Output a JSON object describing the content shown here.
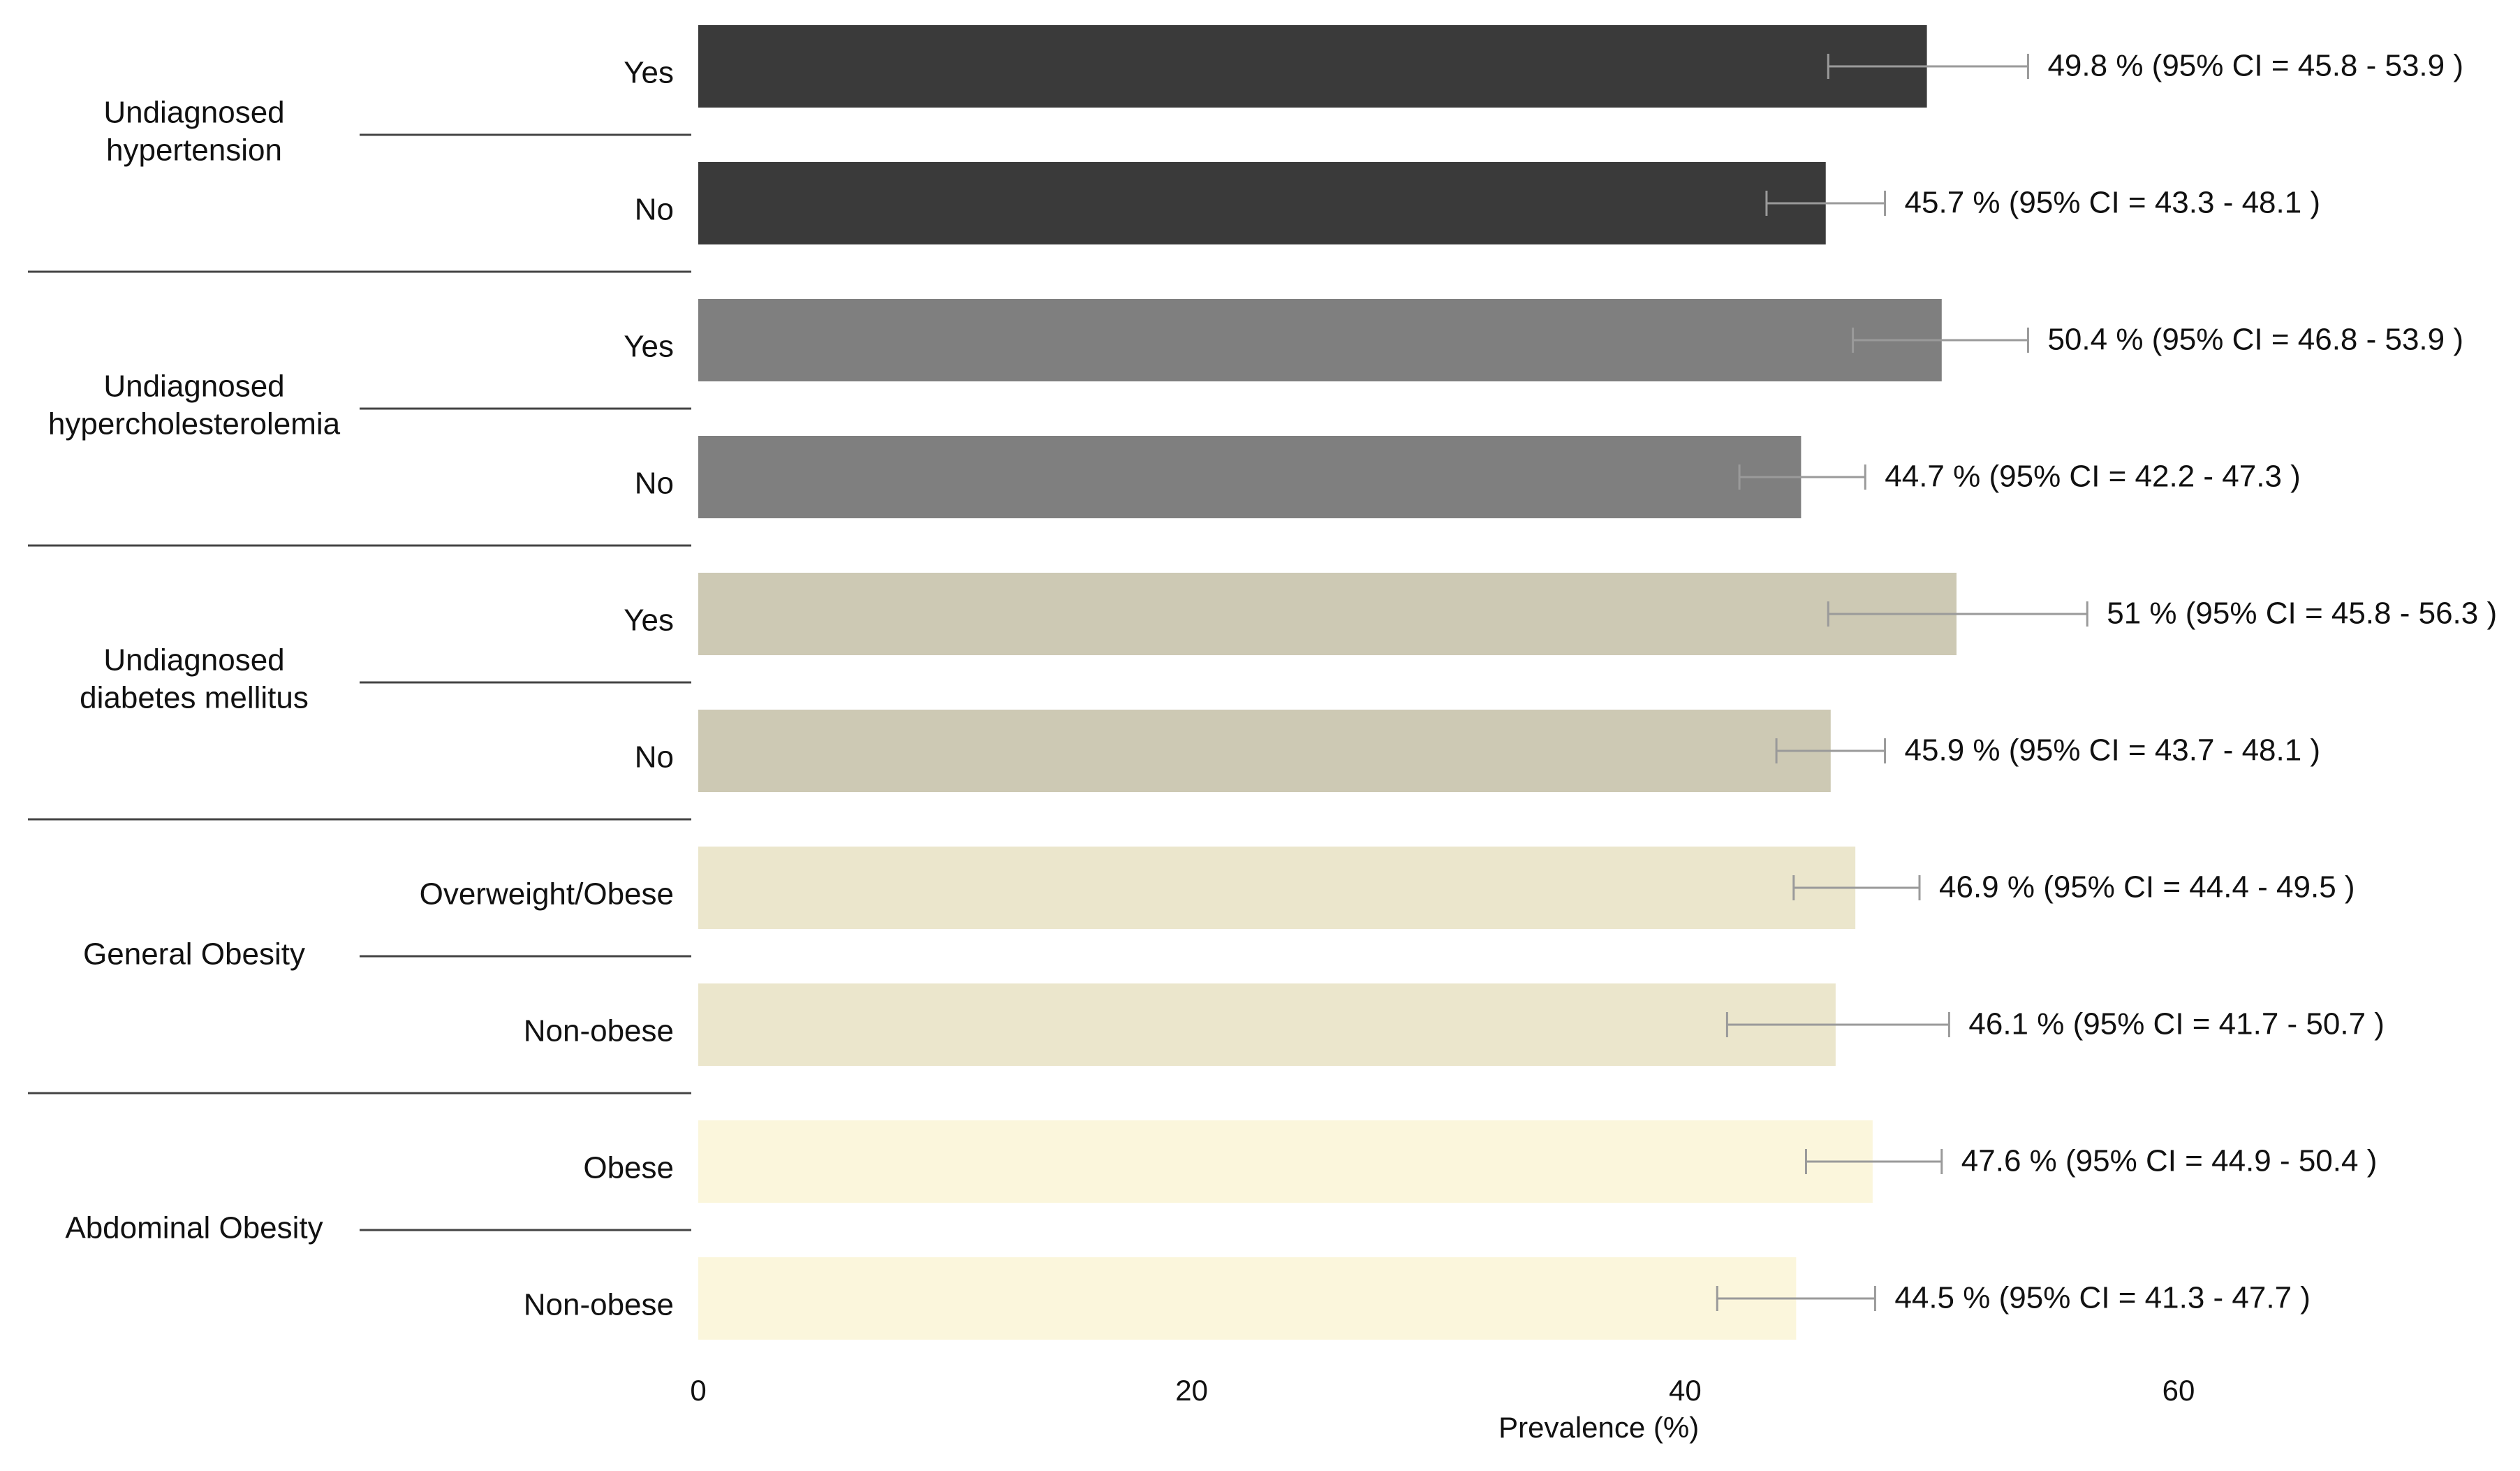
{
  "chart_data": {
    "type": "bar",
    "orientation": "horizontal",
    "title": "",
    "xlabel": "Prevalence (%)",
    "ylabel": "",
    "xlim": [
      0,
      73
    ],
    "x_ticks": [
      "0",
      "20",
      "40",
      "60"
    ],
    "x_tick_values": [
      0,
      20,
      40,
      60
    ],
    "grid": false,
    "groups": [
      {
        "label_lines": [
          "Undiagnosed",
          "hypertension"
        ],
        "color": "#3a3a3a",
        "rows": [
          {
            "category": "Yes",
            "value": 49.8,
            "ci_low": 45.8,
            "ci_high": 53.9,
            "label": "49.8 % (95% CI = 45.8 - 53.9 )"
          },
          {
            "category": "No",
            "value": 45.7,
            "ci_low": 43.3,
            "ci_high": 48.1,
            "label": "45.7 % (95% CI = 43.3 - 48.1 )"
          }
        ]
      },
      {
        "label_lines": [
          "Undiagnosed",
          "hypercholesterolemia"
        ],
        "color": "#7f7f7f",
        "rows": [
          {
            "category": "Yes",
            "value": 50.4,
            "ci_low": 46.8,
            "ci_high": 53.9,
            "label": "50.4 % (95% CI = 46.8 - 53.9 )"
          },
          {
            "category": "No",
            "value": 44.7,
            "ci_low": 42.2,
            "ci_high": 47.3,
            "label": "44.7 % (95% CI = 42.2 - 47.3 )"
          }
        ]
      },
      {
        "label_lines": [
          "Undiagnosed",
          "diabetes mellitus"
        ],
        "color": "#cdc9b4",
        "rows": [
          {
            "category": "Yes",
            "value": 51,
            "ci_low": 45.8,
            "ci_high": 56.3,
            "label": "51 % (95% CI = 45.8 - 56.3 )"
          },
          {
            "category": "No",
            "value": 45.9,
            "ci_low": 43.7,
            "ci_high": 48.1,
            "label": "45.9 % (95% CI = 43.7 - 48.1 )"
          }
        ]
      },
      {
        "label_lines": [
          "General Obesity"
        ],
        "color": "#ebe6cc",
        "rows": [
          {
            "category": "Overweight/Obese",
            "value": 46.9,
            "ci_low": 44.4,
            "ci_high": 49.5,
            "label": "46.9 % (95% CI = 44.4 - 49.5 )"
          },
          {
            "category": "Non-obese",
            "value": 46.1,
            "ci_low": 41.7,
            "ci_high": 50.7,
            "label": "46.1 % (95% CI = 41.7 - 50.7 )"
          }
        ]
      },
      {
        "label_lines": [
          "Abdominal Obesity"
        ],
        "color": "#fbf6dc",
        "rows": [
          {
            "category": "Obese",
            "value": 47.6,
            "ci_low": 44.9,
            "ci_high": 50.4,
            "label": "47.6 % (95% CI = 44.9 - 50.4 )"
          },
          {
            "category": "Non-obese",
            "value": 44.5,
            "ci_low": 41.3,
            "ci_high": 47.7,
            "label": "44.5 % (95% CI = 41.3 - 47.7 )"
          }
        ]
      }
    ]
  }
}
